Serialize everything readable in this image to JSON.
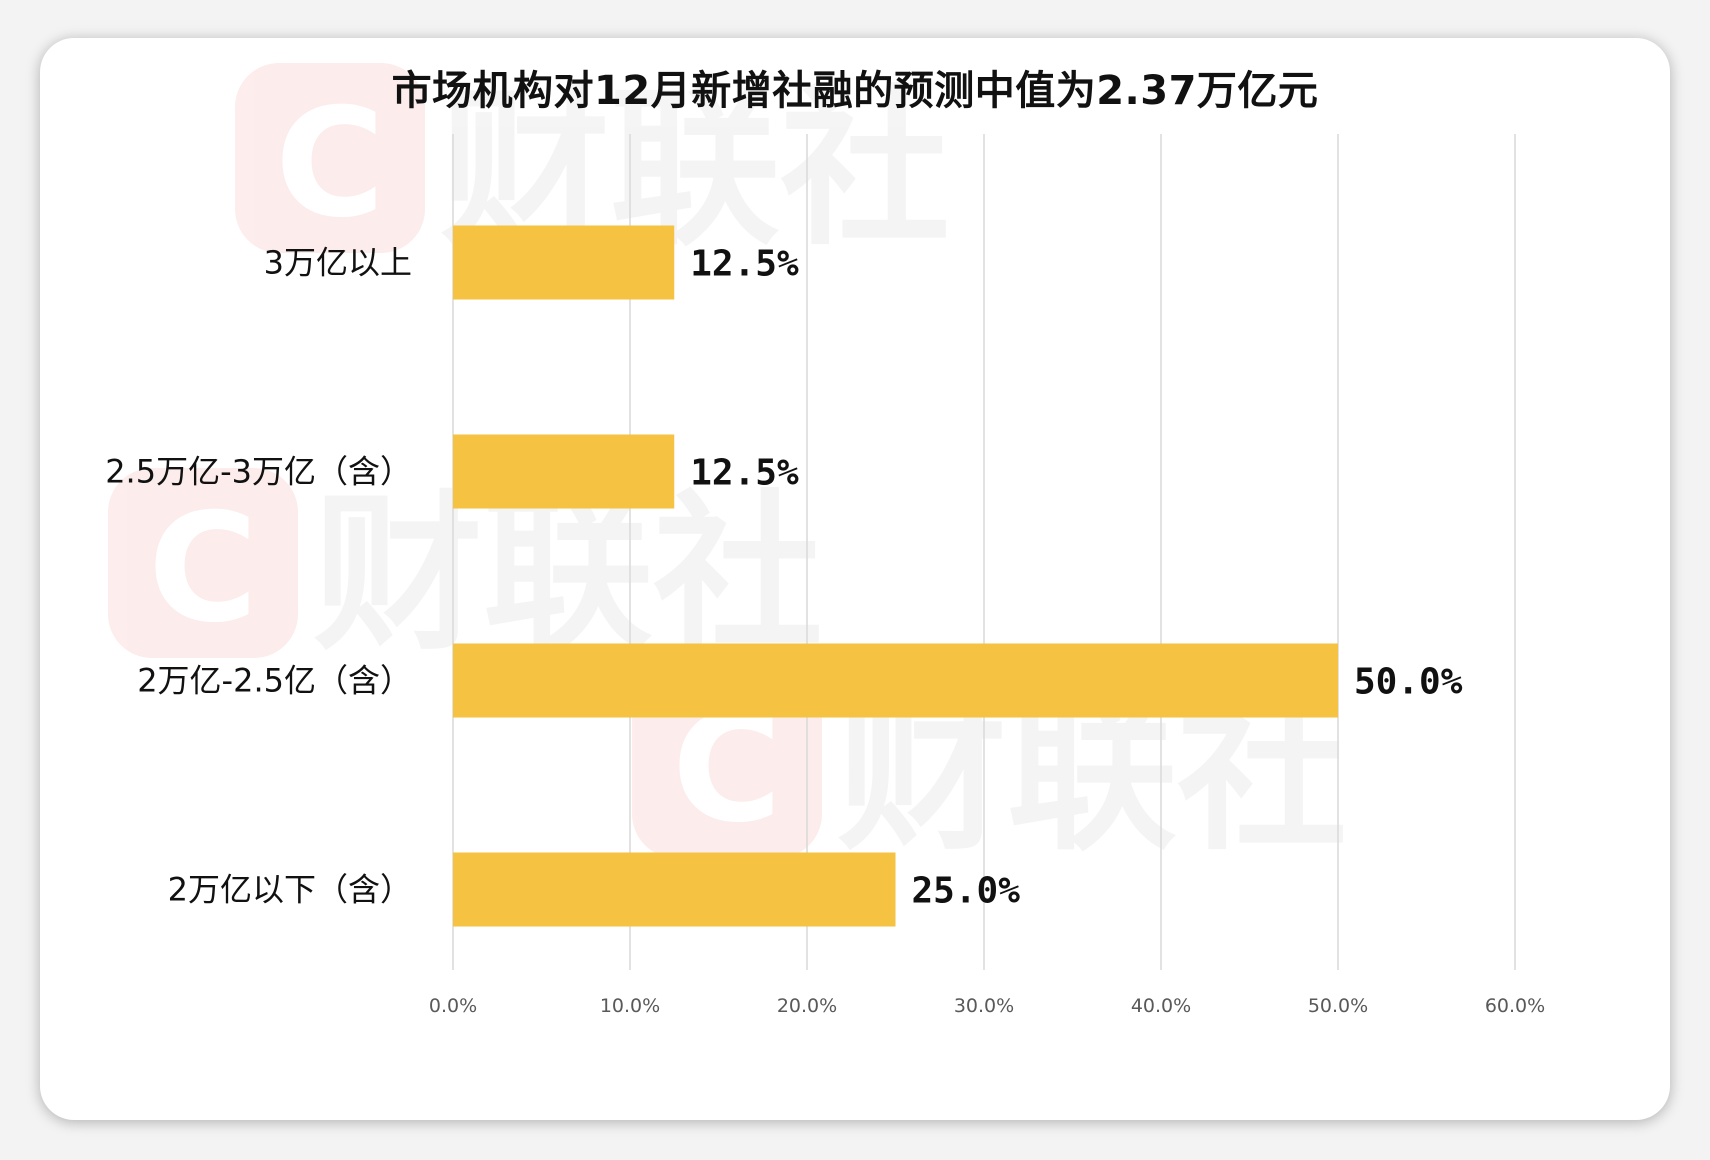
{
  "colors": {
    "bar": "#F5C242",
    "grid": "#d9d9d9",
    "tick_text": "#595959",
    "label_text": "#111111",
    "watermark_logo": "#e94b4b",
    "watermark_text": "#9a9a9a"
  },
  "watermark": {
    "logo_letter": "C",
    "brand": "财联社"
  },
  "chart_data": {
    "type": "bar",
    "orientation": "horizontal",
    "title": "市场机构对12月新增社融的预测中值为2.37万亿元",
    "categories": [
      "3万亿以上",
      "2.5万亿-3万亿（含）",
      "2万亿-2.5亿（含）",
      "2万亿以下（含）"
    ],
    "values": [
      12.5,
      12.5,
      50.0,
      25.0
    ],
    "data_labels": [
      "12.5%",
      "12.5%",
      "50.0%",
      "25.0%"
    ],
    "xlim": [
      0,
      60
    ],
    "x_ticks": [
      "0.0%",
      "10.0%",
      "20.0%",
      "30.0%",
      "40.0%",
      "50.0%",
      "60.0%"
    ],
    "grid": "vertical",
    "legend": "none"
  }
}
